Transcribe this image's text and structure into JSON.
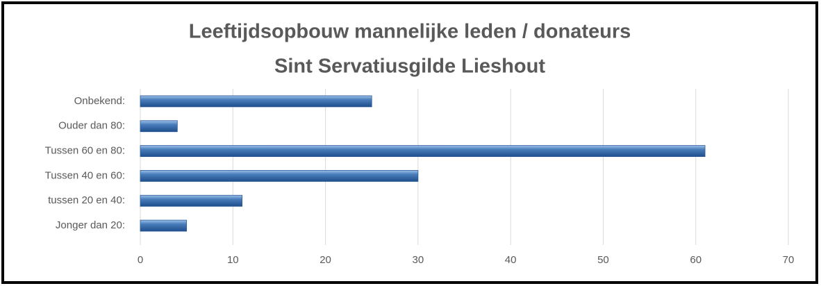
{
  "chart_data": {
    "type": "bar",
    "orientation": "horizontal",
    "title": [
      "Leeftijdsopbouw mannelijke leden / donateurs",
      "Sint Servatiusgilde Lieshout"
    ],
    "categories": [
      "Onbekend:",
      "Ouder dan 80:",
      "Tussen 60 en 80:",
      "Tussen 40 en 60:",
      "tussen 20 en 40:",
      "Jonger dan 20:"
    ],
    "values": [
      25,
      4,
      61,
      30,
      11,
      5
    ],
    "color": "#4a7ebb",
    "xlim": [
      0,
      70
    ],
    "xticks": [
      0,
      10,
      20,
      30,
      40,
      50,
      60,
      70
    ],
    "grid": true
  }
}
